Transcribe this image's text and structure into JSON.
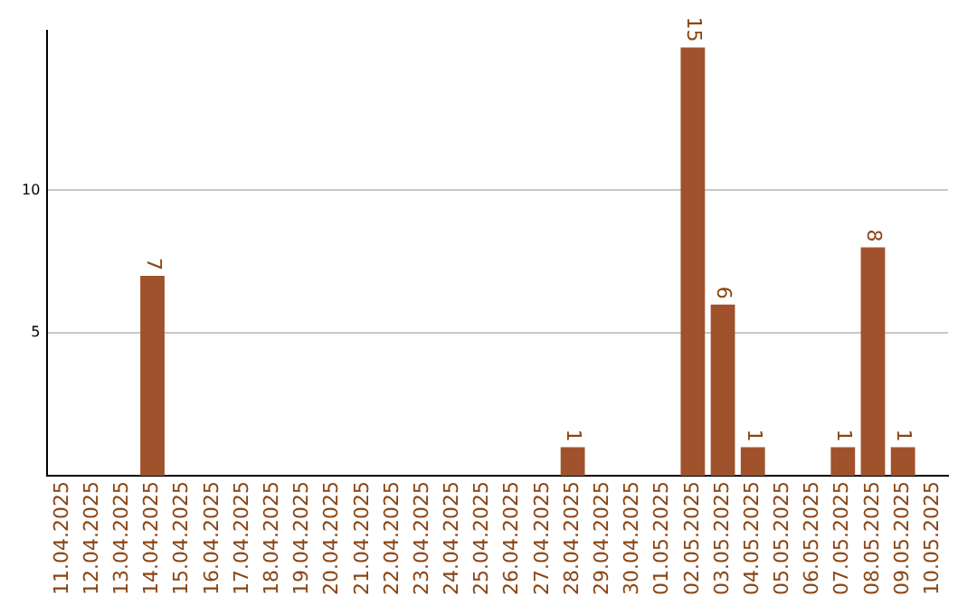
{
  "chart_data": {
    "type": "bar",
    "categories": [
      "11.04.2025",
      "12.04.2025",
      "13.04.2025",
      "14.04.2025",
      "15.04.2025",
      "16.04.2025",
      "17.04.2025",
      "18.04.2025",
      "19.04.2025",
      "20.04.2025",
      "21.04.2025",
      "22.04.2025",
      "23.04.2025",
      "24.04.2025",
      "25.04.2025",
      "26.04.2025",
      "27.04.2025",
      "28.04.2025",
      "29.04.2025",
      "30.04.2025",
      "01.05.2025",
      "02.05.2025",
      "03.05.2025",
      "04.05.2025",
      "05.05.2025",
      "06.05.2025",
      "07.05.2025",
      "08.05.2025",
      "09.05.2025",
      "10.05.2025"
    ],
    "values": [
      0,
      0,
      0,
      7,
      0,
      0,
      0,
      0,
      0,
      0,
      0,
      0,
      0,
      0,
      0,
      0,
      0,
      1,
      0,
      0,
      0,
      15,
      6,
      1,
      0,
      0,
      1,
      8,
      1,
      0
    ],
    "value_labels": [
      null,
      null,
      null,
      "7",
      null,
      null,
      null,
      null,
      null,
      null,
      null,
      null,
      null,
      null,
      null,
      null,
      null,
      "1",
      null,
      null,
      null,
      "15",
      "6",
      "1",
      null,
      null,
      "1",
      "8",
      "1",
      null
    ],
    "color": "#a0522d",
    "ylim": [
      0,
      15.6
    ],
    "yticks": [
      5,
      10
    ],
    "grid": "y",
    "legend": false
  }
}
